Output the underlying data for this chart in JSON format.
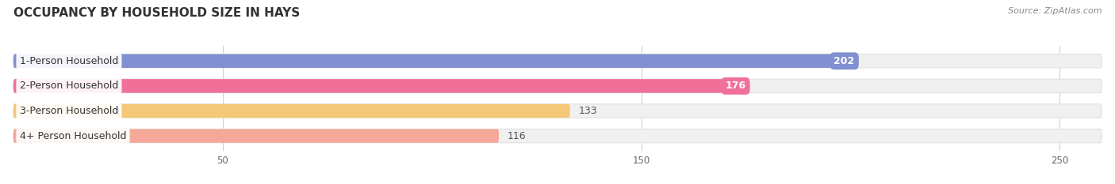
{
  "title": "OCCUPANCY BY HOUSEHOLD SIZE IN HAYS",
  "source": "Source: ZipAtlas.com",
  "categories": [
    "1-Person Household",
    "2-Person Household",
    "3-Person Household",
    "4+ Person Household"
  ],
  "values": [
    202,
    176,
    133,
    116
  ],
  "bar_colors": [
    "#8090d0",
    "#f0709a",
    "#f5c878",
    "#f5a898"
  ],
  "bg_bar_color": "#f0f0f0",
  "bg_bar_edge": "#e0e0e0",
  "xlim": [
    0,
    260
  ],
  "xticks": [
    50,
    150,
    250
  ],
  "label_colors": [
    "white",
    "white",
    "#555555",
    "#555555"
  ],
  "background_color": "#ffffff",
  "title_fontsize": 11,
  "source_fontsize": 8,
  "bar_label_fontsize": 9,
  "category_fontsize": 9
}
